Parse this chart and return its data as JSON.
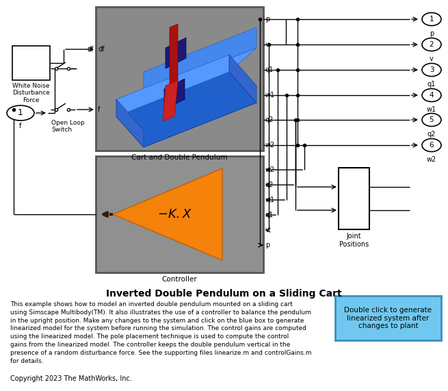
{
  "title": "Inverted Double Pendulum on a Sliding Cart",
  "description": "This example shows how to model an inverted double pendulum mounted on a sliding cart\nusing Simscape Multibody(TM). It also illustrates the use of a controller to balance the pendulum\nin the upright position. Make any changes to the system and click on the blue box to generate\nlinearized model for the system before running the simulation. The control gains are computed\nusing the linearized model. The pole placement technique is used to compute the control\ngains from the linearized model. The controller keeps the double pendulum vertical in the\npresence of a random disturbance force. See the supporting files linearize.m and controlGains.m\nfor details.",
  "copyright": "Copyright 2023 The MathWorks, Inc.",
  "blue_box_text": "Double click to generate\nlinearized system after\nchanges to plant",
  "cart_label": "Cart and Double Pendulum",
  "controller_label": "Controller",
  "wn_label": "White Noise\nDisturbance\nForce",
  "switch_label": "Open Loop\nSwitch",
  "joint_label": "Joint\nPositions",
  "output_labels": [
    "p",
    "v",
    "q1",
    "w1",
    "q2",
    "w2"
  ],
  "input_labels_ctrl": [
    "w2",
    "q2",
    "w1",
    "q1",
    "v",
    "p"
  ],
  "port_numbers": [
    "1",
    "2",
    "3",
    "4",
    "5",
    "6"
  ],
  "port_sublabels": [
    "p",
    "v",
    "q1",
    "w1",
    "q2",
    "w2"
  ],
  "bg_color": "#ffffff",
  "block_gray": "#909090",
  "orange_color": "#f5820a",
  "blue_box_color": "#70c8f0"
}
